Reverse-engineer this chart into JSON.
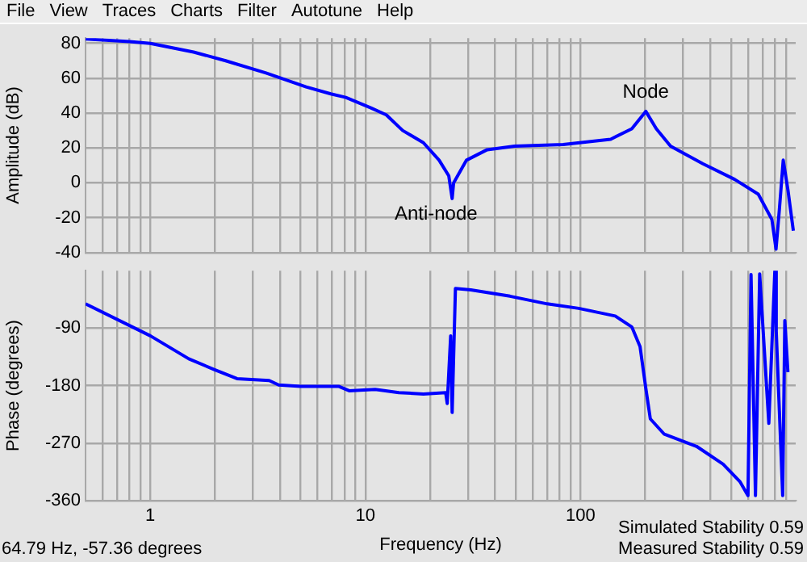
{
  "chart_data": [
    {
      "type": "line",
      "ylabel": "Amplitude (dB)",
      "log": "x",
      "grid": true,
      "tick_labels": "y",
      "marker": "none",
      "xlim": [
        0.5,
        1000
      ],
      "ylim": [
        -40,
        83
      ],
      "xticks": [
        {
          "value": 0.6,
          "label": null
        },
        {
          "value": 0.7,
          "label": null
        },
        {
          "value": 0.8,
          "label": null
        },
        {
          "value": 0.9,
          "label": null
        },
        1,
        {
          "value": 2,
          "label": null
        },
        {
          "value": 3,
          "label": null
        },
        {
          "value": 4,
          "label": null
        },
        {
          "value": 5,
          "label": null
        },
        {
          "value": 6,
          "label": null
        },
        {
          "value": 7,
          "label": null
        },
        {
          "value": 8,
          "label": null
        },
        {
          "value": 9,
          "label": null
        },
        10,
        {
          "value": 20,
          "label": null
        },
        {
          "value": 30,
          "label": null
        },
        {
          "value": 40,
          "label": null
        },
        {
          "value": 50,
          "label": null
        },
        {
          "value": 60,
          "label": null
        },
        {
          "value": 70,
          "label": null
        },
        {
          "value": 80,
          "label": null
        },
        {
          "value": 90,
          "label": null
        },
        100,
        {
          "value": 200,
          "label": null
        },
        {
          "value": 300,
          "label": null
        },
        {
          "value": 400,
          "label": null
        },
        {
          "value": 500,
          "label": null
        },
        {
          "value": 600,
          "label": null
        },
        {
          "value": 700,
          "label": null
        },
        {
          "value": 800,
          "label": null
        },
        {
          "value": 900,
          "label": null
        }
      ],
      "yticks": [
        -40,
        -20,
        0,
        20,
        40,
        60,
        80
      ],
      "annotations": [
        "File",
        "View",
        "Traces",
        "Charts",
        "Filter",
        "Autotune",
        "Help",
        {
          "text": "Anti-node",
          "x": 25.3,
          "y": -9
        },
        {
          "text": "Node",
          "x": 201,
          "y": 41
        }
      ],
      "series": [
        {
          "color": "#0000ff",
          "x": [
            0.5,
            0.8,
            1,
            1.59,
            2.24,
            3.45,
            5.3,
            6.9,
            8.1,
            10.6,
            12.5,
            14.9,
            18.6,
            22,
            24.4,
            25.3,
            25.7,
            29.5,
            36.8,
            49.3,
            83,
            138,
            173,
            201,
            225,
            262,
            370,
            520,
            670,
            775,
            810,
            840,
            875,
            920,
            975
          ],
          "values": [
            82.5,
            81,
            80,
            75,
            70,
            63,
            55,
            51,
            49,
            43,
            39,
            30,
            23,
            13,
            4,
            -9,
            0,
            13,
            19,
            21,
            22,
            25,
            31,
            41,
            31,
            21,
            11,
            2,
            -6.5,
            -21,
            -38,
            -15,
            13,
            -4,
            -27.5
          ]
        }
      ]
    },
    {
      "type": "line",
      "ylabel": "Phase (degrees)",
      "xlabel": "Frequency (Hz)",
      "log": "x",
      "grid": true,
      "marker": "none",
      "xlim": [
        0.5,
        1000
      ],
      "ylim": [
        -360,
        0
      ],
      "xticks": [
        {
          "value": 0.6,
          "label": null
        },
        {
          "value": 0.7,
          "label": null
        },
        {
          "value": 0.8,
          "label": null
        },
        {
          "value": 0.9,
          "label": null
        },
        1,
        {
          "value": 2,
          "label": null
        },
        {
          "value": 3,
          "label": null
        },
        {
          "value": 4,
          "label": null
        },
        {
          "value": 5,
          "label": null
        },
        {
          "value": 6,
          "label": null
        },
        {
          "value": 7,
          "label": null
        },
        {
          "value": 8,
          "label": null
        },
        {
          "value": 9,
          "label": null
        },
        10,
        {
          "value": 20,
          "label": null
        },
        {
          "value": 30,
          "label": null
        },
        {
          "value": 40,
          "label": null
        },
        {
          "value": 50,
          "label": null
        },
        {
          "value": 60,
          "label": null
        },
        {
          "value": 70,
          "label": null
        },
        {
          "value": 80,
          "label": null
        },
        {
          "value": 90,
          "label": null
        },
        100,
        {
          "value": 200,
          "label": null
        },
        {
          "value": 300,
          "label": null
        },
        {
          "value": 400,
          "label": null
        },
        {
          "value": 500,
          "label": null
        },
        {
          "value": 600,
          "label": null
        },
        {
          "value": 700,
          "label": null
        },
        {
          "value": 800,
          "label": null
        },
        {
          "value": 900,
          "label": null
        }
      ],
      "yticks": [
        -360,
        -270,
        -180,
        -90
      ],
      "annotations": [
        "64.79 Hz, -57.36 degrees",
        "Simulated Stability 0.59",
        "Measured Stability 0.59"
      ],
      "series": [
        {
          "color": "#0000ff",
          "x": [
            0.5,
            1,
            1.51,
            1.99,
            2.53,
            3.57,
            3.95,
            5,
            7.5,
            8.4,
            11.1,
            14.3,
            18.6,
            23.6,
            24,
            24.9,
            25.3,
            26.2,
            30.9,
            47,
            70,
            98,
            145,
            173,
            189,
            201,
            211,
            245,
            346,
            460,
            550,
            600,
            620,
            650,
            680,
            750,
            800,
            812,
            870,
            890,
            920
          ],
          "values": [
            -52,
            -102,
            -138,
            -155,
            -169,
            -172,
            -179,
            -181,
            -181,
            -188,
            -186,
            -191,
            -193,
            -191,
            -208,
            -102,
            -222,
            -28,
            -30,
            -40,
            -52,
            -59,
            -71,
            -88,
            -119,
            -184,
            -232,
            -256,
            -275,
            -303,
            -330,
            -352,
            -6,
            -352,
            -5,
            -239,
            0,
            -95,
            -352,
            -78,
            -159
          ]
        }
      ]
    }
  ]
}
